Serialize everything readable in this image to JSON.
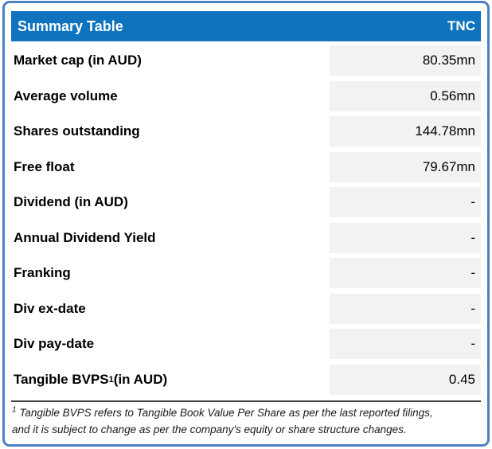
{
  "header": {
    "title": "Summary Table",
    "ticker": "TNC"
  },
  "rows": [
    {
      "label": "Market cap (in AUD)",
      "value": "80.35mn"
    },
    {
      "label": "Average volume",
      "value": "0.56mn"
    },
    {
      "label": "Shares outstanding",
      "value": "144.78mn"
    },
    {
      "label": "Free float",
      "value": "79.67mn"
    },
    {
      "label": "Dividend (in AUD)",
      "value": "-"
    },
    {
      "label": "Annual Dividend Yield",
      "value": "-"
    },
    {
      "label": "Franking",
      "value": "-"
    },
    {
      "label": "Div ex-date",
      "value": "-"
    },
    {
      "label": "Div pay-date",
      "value": "-"
    },
    {
      "label": "Tangible BVPS",
      "sup": "1",
      "label_suffix": " (in AUD)",
      "value": "0.45"
    }
  ],
  "footnote": {
    "sup": "1",
    "lines": [
      "Tangible BVPS refers to Tangible Book Value Per Share as per the last reported filings,",
      "and it is subject to change as per the company's equity or share structure changes."
    ]
  },
  "colors": {
    "header_bg": "#0F73BE",
    "outer_border": "#4B80C1",
    "value_cell_bg": "#F2F2F2",
    "divider": "#3F3F3F"
  }
}
